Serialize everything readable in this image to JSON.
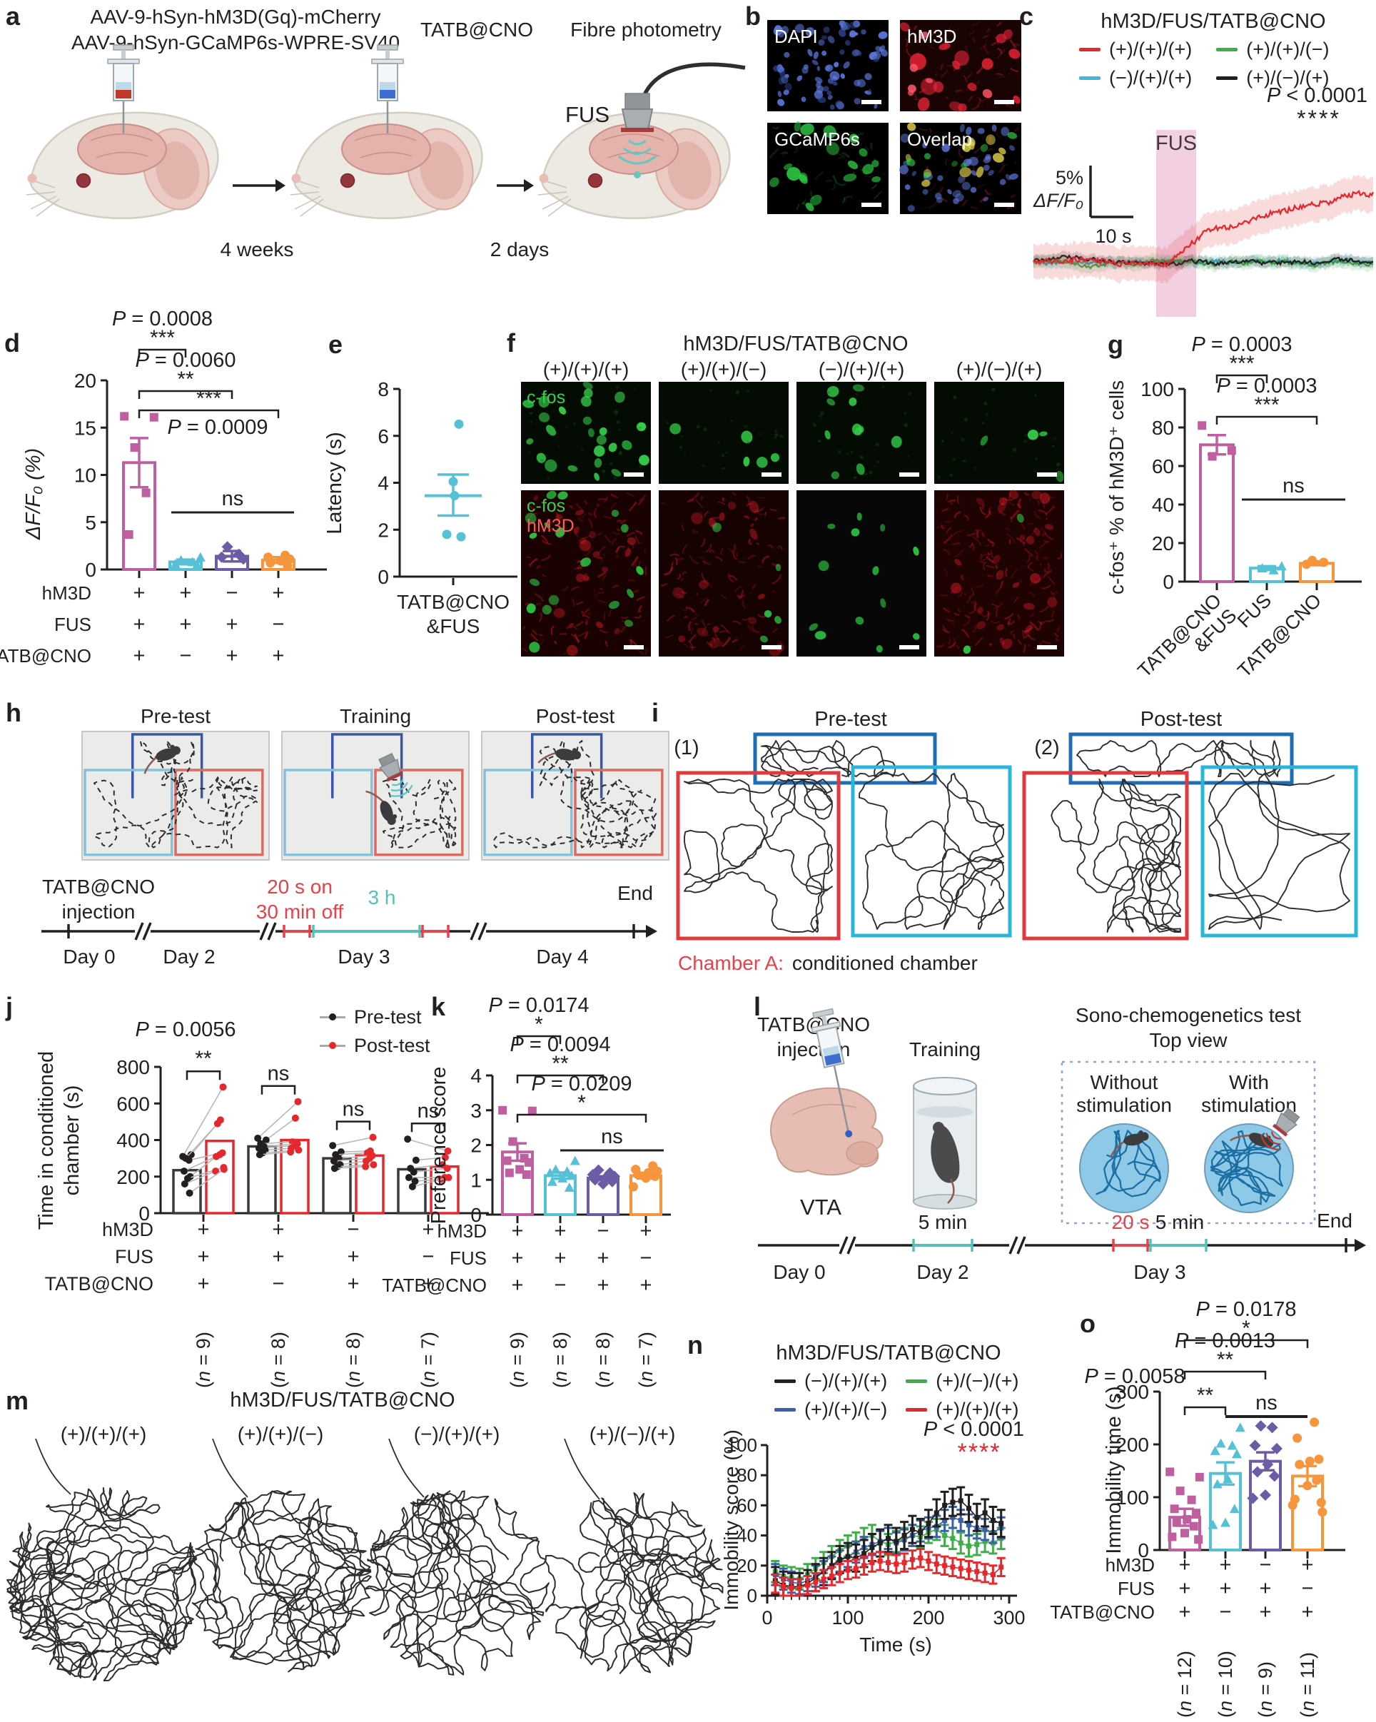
{
  "colors": {
    "ink": "#231f20",
    "magenta": "#bf5fa0",
    "cyan": "#56c1d6",
    "purple": "#6b5ca5",
    "orange": "#f6953c",
    "red": "#e4282e",
    "green": "#3fae49",
    "blue": "#3b5fac",
    "pink_band": "#f2cfe1",
    "red_accent": "#e8414b",
    "teal": "#52c3bb",
    "track": "#2d2d2f"
  },
  "panels": {
    "a": {
      "label": "a",
      "virus_line1": "AAV-9-hSyn-hM3D(Gq)-mCherry",
      "virus_line2": "AAV-9-hSyn-GCaMP6s-WPRE-SV40",
      "injection_label": "TATB@CNO",
      "method_label": "Fibre photometry",
      "fus_label": "FUS",
      "interval1": "4 weeks",
      "interval2": "2 days"
    },
    "b": {
      "label": "b",
      "images": [
        "DAPI",
        "hM3D",
        "GCaMP6s",
        "Overlap"
      ]
    },
    "c": {
      "label": "c",
      "title": "hM3D/FUS/TATB@CNO",
      "p_value": "P < 0.0001",
      "stars": "****",
      "fus_label": "FUS",
      "scale_v1": "5%",
      "scale_v2": "ΔF/F₀",
      "scale_h": "10 s",
      "legend": [
        {
          "label": "(+)/(+)/(+)",
          "color": "#e4282e"
        },
        {
          "label": "(+)/(+)/(−)",
          "color": "#3fae49"
        },
        {
          "label": "(−)/(+)/(+)",
          "color": "#45b5d8"
        },
        {
          "label": "(+)/(−)/(+)",
          "color": "#231f20"
        }
      ]
    },
    "d": {
      "label": "d"
    },
    "e": {
      "label": "e"
    },
    "f": {
      "label": "f",
      "title": "hM3D/FUS/TATB@CNO",
      "conditions": [
        "(+)/(+)/(+)",
        "(+)/(+)/(−)",
        "(−)/(+)/(+)",
        "(+)/(−)/(+)"
      ],
      "row1_label": "c-fos",
      "row2_label1": "c-fos",
      "row2_label2": "hM3D"
    },
    "g": {
      "label": "g"
    },
    "h": {
      "label": "h",
      "titles": [
        "Pre-test",
        "Training",
        "Post-test"
      ],
      "injection_line1": "TATB@CNO",
      "injection_line2": "injection",
      "stim_line1": "20 s on",
      "stim_line2": "30 min off",
      "duration": "3 h",
      "end_label": "End",
      "days": [
        "Day 0",
        "Day 2",
        "Day 3",
        "Day 4"
      ]
    },
    "i": {
      "label": "i",
      "index1": "(1)",
      "index2": "(2)",
      "pre_title": "Pre-test",
      "post_title": "Post-test",
      "caption_red": "Chamber A:",
      "caption_rest": "conditioned chamber"
    },
    "j": {
      "label": "j"
    },
    "k": {
      "label": "k"
    },
    "l": {
      "label": "l",
      "injection_line1": "TATB@CNO",
      "injection_line2": "injection",
      "target": "VTA",
      "training": "Training",
      "t_train": "5 min",
      "test_line1": "Sono-chemogenetics test",
      "test_line2": "Top view",
      "without_line1": "Without",
      "without_line2": "stimulation",
      "with_line1": "With",
      "with_line2": "stimulation",
      "t20": "20 s",
      "t5": "5 min",
      "end_label": "End",
      "days": [
        "Day 0",
        "Day 2",
        "Day 3"
      ]
    },
    "m": {
      "label": "m",
      "title": "hM3D/FUS/TATB@CNO",
      "conditions": [
        "(+)/(+)/(+)",
        "(+)/(+)/(−)",
        "(−)/(+)/(+)",
        "(+)/(−)/(+)"
      ]
    },
    "n": {
      "label": "n",
      "title": "hM3D/FUS/TATB@CNO"
    },
    "o": {
      "label": "o"
    }
  },
  "condition_rows": [
    {
      "name": "hM3D",
      "values": [
        "+",
        "+",
        "−",
        "+"
      ]
    },
    {
      "name": "FUS",
      "values": [
        "+",
        "+",
        "+",
        "−"
      ]
    },
    {
      "name": "TATB@CNO",
      "values": [
        "+",
        "−",
        "+",
        "+"
      ]
    }
  ],
  "chart_data": [
    {
      "id": "c_trace",
      "panel": "c",
      "type": "line",
      "title": "hM3D/FUS/TATB@CNO",
      "series": [
        {
          "label": "(+)/(+)/(+)",
          "color": "#e4282e",
          "profile": "rises during and after FUS"
        },
        {
          "label": "(+)/(+)/(−)",
          "color": "#3fae49",
          "profile": "flat"
        },
        {
          "label": "(−)/(+)/(+)",
          "color": "#45b5d8",
          "profile": "flat"
        },
        {
          "label": "(+)/(−)/(+)",
          "color": "#231f20",
          "profile": "flat"
        }
      ],
      "annotation": {
        "p": "P < 0.0001",
        "stars": "****"
      },
      "stim_label": "FUS",
      "scalebar": {
        "v": "5% ΔF/F₀",
        "h": "10 s"
      }
    },
    {
      "id": "d_dff",
      "panel": "d",
      "type": "bar",
      "ylabel": "ΔF/F₀ (%)",
      "ylim": [
        0,
        20
      ],
      "yticks": [
        0,
        5,
        10,
        15,
        20
      ],
      "values": [
        11.3,
        0.8,
        1.4,
        1.0
      ],
      "errors": [
        2.6,
        0.25,
        0.55,
        0.3
      ],
      "points": [
        [
          16.2,
          16.1,
          12.9,
          8.1,
          3.7
        ],
        [
          1.3,
          1.0,
          0.8,
          0.6,
          0.5
        ],
        [
          2.4,
          1.6,
          1.3,
          1.1
        ],
        [
          1.5,
          1.3,
          1.1,
          0.9,
          0.7,
          0.4
        ]
      ],
      "colors": [
        "#bf5fa0",
        "#56c1d6",
        "#6b5ca5",
        "#f6953c"
      ],
      "markers": [
        "square",
        "triangle",
        "diamond",
        "circle"
      ],
      "sig": [
        {
          "label": "P = 0.0008",
          "stars": "***",
          "from": 0,
          "to": 1
        },
        {
          "label": "P = 0.0060",
          "stars": "**",
          "from": 0,
          "to": 2
        },
        {
          "label": "P = 0.0009",
          "stars": "***",
          "from": 0,
          "to": 3,
          "label_below": true
        },
        {
          "label": "ns",
          "from": 1,
          "to": 3,
          "line": true
        }
      ]
    },
    {
      "id": "e_latency",
      "panel": "e",
      "type": "scatter",
      "ylabel": "Latency (s)",
      "ylim": [
        0,
        8
      ],
      "yticks": [
        0,
        2,
        4,
        6,
        8
      ],
      "points": [
        6.5,
        4.05,
        3.45,
        1.8,
        1.7
      ],
      "mean": 3.45,
      "err_hi": 4.35,
      "err_lo": 2.6,
      "xlabel_lines": [
        "TATB@CNO",
        "&FUS"
      ],
      "color": "#56c1d6"
    },
    {
      "id": "g_cfos",
      "panel": "g",
      "type": "bar",
      "ylabel": "c-fos⁺ % of hM3D⁺ cells",
      "ylim": [
        0,
        100
      ],
      "yticks": [
        0,
        20,
        40,
        60,
        80,
        100
      ],
      "categories": [
        [
          "TATB@CNO",
          "&FUS"
        ],
        [
          "FUS"
        ],
        [
          "TATB@CNO"
        ]
      ],
      "values": [
        71,
        7,
        9.5
      ],
      "errors": [
        5,
        1,
        1
      ],
      "points": [
        [
          81,
          68,
          65
        ],
        [
          8,
          7,
          6
        ],
        [
          11,
          10,
          9
        ]
      ],
      "colors": [
        "#bf5fa0",
        "#56c1d6",
        "#f6953c"
      ],
      "markers": [
        "square",
        "triangle",
        "circle"
      ],
      "sig": [
        {
          "label": "P = 0.0003",
          "stars": "***",
          "from": 0,
          "to": 1
        },
        {
          "label": "P = 0.0003",
          "stars": "***",
          "from": 0,
          "to": 2
        },
        {
          "label": "ns",
          "from": 1,
          "to": 2,
          "line": true
        }
      ]
    },
    {
      "id": "j_time",
      "panel": "j",
      "type": "paired-bar",
      "ylabel_lines": [
        "Time in conditioned",
        "chamber (s)"
      ],
      "ylim": [
        0,
        800
      ],
      "yticks": [
        0,
        200,
        400,
        600,
        800
      ],
      "p_label": "P = 0.0056",
      "legend": [
        {
          "label": "Pre-test",
          "color": "#231f20"
        },
        {
          "label": "Post-test",
          "color": "#e4282e"
        }
      ],
      "groups": [
        {
          "pre": 235,
          "post": 395,
          "sig": "**",
          "pairs": [
            [
              310,
              690
            ],
            [
              320,
              510
            ],
            [
              300,
              490
            ],
            [
              290,
              330
            ],
            [
              230,
              320
            ],
            [
              200,
              310
            ],
            [
              190,
              250
            ],
            [
              160,
              230
            ],
            [
              110,
              240
            ]
          ]
        },
        {
          "pre": 365,
          "post": 400,
          "sig": "ns",
          "pairs": [
            [
              410,
              610
            ],
            [
              400,
              520
            ],
            [
              380,
              390
            ],
            [
              365,
              380
            ],
            [
              355,
              370
            ],
            [
              345,
              355
            ],
            [
              330,
              345
            ],
            [
              320,
              335
            ]
          ]
        },
        {
          "pre": 300,
          "post": 315,
          "sig": "ns",
          "pairs": [
            [
              370,
              415
            ],
            [
              335,
              340
            ],
            [
              320,
              330
            ],
            [
              300,
              315
            ],
            [
              285,
              300
            ],
            [
              265,
              285
            ],
            [
              255,
              265
            ],
            [
              245,
              255
            ]
          ]
        },
        {
          "pre": 240,
          "post": 255,
          "sig": "ns",
          "pairs": [
            [
              405,
              340
            ],
            [
              290,
              305
            ],
            [
              245,
              265
            ],
            [
              225,
              245
            ],
            [
              195,
              195
            ],
            [
              175,
              185
            ],
            [
              145,
              195
            ]
          ]
        }
      ],
      "n_labels": [
        "(n = 9)",
        "(n = 8)",
        "(n = 8)",
        "(n = 7)"
      ]
    },
    {
      "id": "k_pref",
      "panel": "k",
      "type": "bar",
      "ylabel": "Preference score",
      "ylim": [
        0,
        4
      ],
      "yticks": [
        0,
        1,
        2,
        3,
        4
      ],
      "values": [
        1.8,
        1.12,
        1.05,
        1.12
      ],
      "errors": [
        0.25,
        0.09,
        0.05,
        0.08
      ],
      "points": [
        [
          3.0,
          2.98,
          2.1,
          1.62,
          1.55,
          1.5,
          1.3,
          1.2,
          1.15
        ],
        [
          1.55,
          1.3,
          1.25,
          1.2,
          1.12,
          1.05,
          0.95,
          0.78
        ],
        [
          1.28,
          1.2,
          1.15,
          1.1,
          1.05,
          1.0,
          0.95,
          0.88
        ],
        [
          1.4,
          1.3,
          1.25,
          1.2,
          1.15,
          1.1,
          1.05,
          0.8
        ]
      ],
      "colors": [
        "#bf5fa0",
        "#56c1d6",
        "#6b5ca5",
        "#f6953c"
      ],
      "markers": [
        "square",
        "triangle",
        "diamond",
        "circle"
      ],
      "sig": [
        {
          "label": "P = 0.0174",
          "stars": "*",
          "from": 0,
          "to": 1
        },
        {
          "label": "P = 0.0094",
          "stars": "**",
          "from": 0,
          "to": 2
        },
        {
          "label": "P = 0.0209",
          "stars": "*",
          "from": 0,
          "to": 3
        },
        {
          "label": "ns",
          "from": 1,
          "to": 3,
          "line": true
        }
      ],
      "n_labels": [
        "(n = 9)",
        "(n = 8)",
        "(n = 8)",
        "(n = 7)"
      ]
    },
    {
      "id": "n_immobility_score",
      "panel": "n",
      "type": "line-error",
      "title": "hM3D/FUS/TATB@CNO",
      "ylabel": "Immobility score (%)",
      "xlabel": "Time (s)",
      "ylim": [
        0,
        100
      ],
      "yticks": [
        0,
        20,
        40,
        60,
        80,
        100
      ],
      "xlim": [
        0,
        300
      ],
      "xticks": [
        0,
        100,
        200,
        300
      ],
      "p_value": "P < 0.0001",
      "stars": "****",
      "x": [
        10,
        20,
        30,
        40,
        50,
        60,
        70,
        80,
        90,
        100,
        110,
        120,
        130,
        140,
        150,
        160,
        170,
        180,
        190,
        200,
        210,
        220,
        230,
        240,
        250,
        260,
        270,
        280,
        290
      ],
      "series": [
        {
          "label": "(−)/(+)/(+)",
          "color": "#231f20",
          "err": 9,
          "values": [
            10,
            7,
            6,
            6,
            8,
            12,
            16,
            20,
            24,
            26,
            25,
            28,
            32,
            35,
            38,
            36,
            40,
            44,
            42,
            48,
            55,
            60,
            62,
            63,
            58,
            52,
            55,
            50,
            48
          ]
        },
        {
          "label": "(+)/(−)/(+)",
          "color": "#3fae49",
          "err": 7,
          "values": [
            16,
            13,
            12,
            11,
            14,
            18,
            22,
            26,
            30,
            33,
            35,
            38,
            40,
            36,
            34,
            36,
            38,
            40,
            39,
            42,
            44,
            40,
            38,
            35,
            33,
            34,
            36,
            35,
            38
          ]
        },
        {
          "label": "(+)/(+)/(−)",
          "color": "#3b5fac",
          "err": 7,
          "values": [
            14,
            11,
            9,
            8,
            10,
            13,
            16,
            19,
            23,
            26,
            29,
            32,
            34,
            36,
            38,
            35,
            37,
            40,
            43,
            45,
            46,
            50,
            52,
            50,
            47,
            45,
            44,
            42,
            45
          ]
        },
        {
          "label": "(+)/(+)/(+)",
          "color": "#e4282e",
          "err": 6,
          "values": [
            8,
            6,
            5,
            5,
            7,
            9,
            11,
            13,
            15,
            17,
            18,
            20,
            22,
            23,
            22,
            21,
            22,
            24,
            25,
            23,
            21,
            20,
            19,
            18,
            17,
            16,
            15,
            14,
            19
          ]
        }
      ]
    },
    {
      "id": "o_immobility_time",
      "panel": "o",
      "type": "bar",
      "ylabel": "Immobility time (s)",
      "ylim": [
        0,
        300
      ],
      "yticks": [
        0,
        100,
        200,
        300
      ],
      "values": [
        62,
        145,
        168,
        140
      ],
      "errors": [
        16,
        21,
        17,
        19
      ],
      "points": [
        [
          148,
          138,
          112,
          95,
          78,
          70,
          58,
          52,
          45,
          32,
          25,
          20
        ],
        [
          232,
          202,
          198,
          188,
          182,
          135,
          125,
          78,
          52,
          48
        ],
        [
          235,
          232,
          198,
          192,
          162,
          148,
          140,
          104,
          98
        ],
        [
          242,
          212,
          172,
          168,
          162,
          132,
          122,
          96,
          90,
          85,
          72
        ]
      ],
      "colors": [
        "#bf5fa0",
        "#56c1d6",
        "#6b5ca5",
        "#f6953c"
      ],
      "markers": [
        "square",
        "triangle",
        "diamond",
        "circle"
      ],
      "sig": [
        {
          "label": "P = 0.0178",
          "stars": "*",
          "from": 0,
          "to": 3
        },
        {
          "label": "P = 0.0013",
          "stars": "**",
          "from": 0,
          "to": 2
        },
        {
          "label": "P = 0.0058",
          "stars": "**",
          "from": 0,
          "to": 1
        },
        {
          "label": "ns",
          "from": 1,
          "to": 3,
          "line": true
        }
      ],
      "n_labels": [
        "(n = 12)",
        "(n = 10)",
        "(n = 9)",
        "(n = 11)"
      ]
    }
  ]
}
